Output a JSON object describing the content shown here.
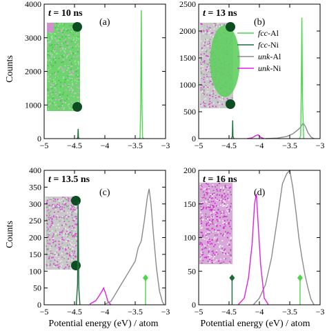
{
  "figure": {
    "xlabel": "Potential energy (eV) / atom",
    "ylabel": "Counts"
  },
  "legend": [
    {
      "species": "fcc",
      "suffix": "-Al",
      "color": "#4cd64c"
    },
    {
      "species": "fcc",
      "suffix": "-Ni",
      "color": "#1a6b3a"
    },
    {
      "species": "unk",
      "suffix": "-Al",
      "color": "#8a8a8a"
    },
    {
      "species": "unk",
      "suffix": "-Ni",
      "color": "#e020e0"
    }
  ],
  "colors": {
    "fcc_al": "#4cd64c",
    "fcc_ni": "#1a6b3a",
    "unk_al": "#8a8a8a",
    "unk_ni": "#e020e0"
  },
  "chart_data": [
    {
      "panel": "(a)",
      "type": "line",
      "t_label": "t = 10 ns",
      "t_var": "t",
      "t_value": "= 10 ns",
      "xlim": [
        -5,
        -3
      ],
      "ylim": [
        0,
        4000
      ],
      "xticks": [
        "−5",
        "−4.5",
        "−4",
        "−3.5",
        "−3"
      ],
      "yticks": [
        "0",
        "1000",
        "2000",
        "3000",
        "4000"
      ],
      "series": [
        {
          "key": "fcc_al",
          "x": [
            -3.44,
            -3.42,
            -3.41,
            -3.4,
            -3.39,
            -3.38,
            -3.36
          ],
          "y": [
            0,
            20,
            900,
            3820,
            1100,
            40,
            0
          ]
        },
        {
          "key": "fcc_ni",
          "x": [
            -4.46,
            -4.445,
            -4.44,
            -4.435,
            -4.42
          ],
          "y": [
            0,
            30,
            290,
            30,
            0
          ]
        }
      ]
    },
    {
      "panel": "(b)",
      "type": "line",
      "t_label": "t = 13 ns",
      "t_var": "t",
      "t_value": "= 13 ns",
      "xlim": [
        -5,
        -3
      ],
      "ylim": [
        0,
        2500
      ],
      "xticks": [
        "−5",
        "−4.5",
        "−4",
        "−3.5",
        "−3"
      ],
      "yticks": [
        "0",
        "500",
        "1000",
        "1500",
        "2000",
        "2500"
      ],
      "series": [
        {
          "key": "unk_al",
          "x": [
            -3.9,
            -3.7,
            -3.55,
            -3.45,
            -3.38,
            -3.33,
            -3.28,
            -3.24,
            -3.2,
            -3.15,
            -3.1
          ],
          "y": [
            0,
            10,
            40,
            90,
            150,
            200,
            290,
            220,
            110,
            30,
            0
          ]
        },
        {
          "key": "unk_ni",
          "x": [
            -4.2,
            -4.12,
            -4.06,
            -4.02,
            -3.98,
            -3.92
          ],
          "y": [
            0,
            15,
            55,
            70,
            25,
            0
          ]
        },
        {
          "key": "fcc_al",
          "x": [
            -3.34,
            -3.32,
            -3.31,
            -3.3,
            -3.29,
            -3.27
          ],
          "y": [
            0,
            50,
            900,
            2250,
            700,
            0
          ]
        },
        {
          "key": "fcc_ni",
          "x": [
            -4.46,
            -4.445,
            -4.44,
            -4.435,
            -4.42
          ],
          "y": [
            0,
            40,
            340,
            40,
            0
          ]
        }
      ]
    },
    {
      "panel": "(c)",
      "type": "line",
      "t_label": "t = 13.5 ns",
      "t_var": "t",
      "t_value": "= 13.5 ns",
      "xlim": [
        -5,
        -3
      ],
      "ylim": [
        0,
        400
      ],
      "xticks": [
        "−5",
        "−4.5",
        "−4",
        "−3.5",
        "−3"
      ],
      "yticks": [
        "0",
        "50",
        "100",
        "150",
        "200",
        "250",
        "300",
        "350",
        "400"
      ],
      "series": [
        {
          "key": "unk_al",
          "x": [
            -4.0,
            -3.9,
            -3.8,
            -3.7,
            -3.6,
            -3.5,
            -3.45,
            -3.4,
            -3.35,
            -3.3,
            -3.27,
            -3.24,
            -3.2,
            -3.15,
            -3.1,
            -3.05,
            -3.02
          ],
          "y": [
            2,
            10,
            40,
            70,
            100,
            130,
            170,
            190,
            250,
            320,
            345,
            300,
            210,
            110,
            40,
            8,
            0
          ]
        },
        {
          "key": "unk_ni",
          "x": [
            -4.25,
            -4.15,
            -4.1,
            -4.05,
            -4.02,
            -3.99,
            -3.95,
            -3.9
          ],
          "y": [
            2,
            12,
            25,
            40,
            50,
            35,
            10,
            0
          ]
        },
        {
          "key": "fcc_ni",
          "x": [
            -4.47,
            -4.45,
            -4.44,
            -4.43,
            -4.41
          ],
          "y": [
            0,
            60,
            305,
            50,
            0
          ]
        }
      ],
      "markers": [
        {
          "key": "fcc_al",
          "x": -3.33,
          "y": 80
        }
      ]
    },
    {
      "panel": "(d)",
      "type": "line",
      "t_label": "t = 16 ns",
      "t_var": "t",
      "t_value": "= 16 ns",
      "xlim": [
        -5,
        -3
      ],
      "ylim": [
        0,
        200
      ],
      "xticks": [
        "−5",
        "−4.5",
        "−4",
        "−3.5",
        "−3"
      ],
      "yticks": [
        "0",
        "50",
        "100",
        "150",
        "200"
      ],
      "series": [
        {
          "key": "unk_al",
          "x": [
            -4.1,
            -4.0,
            -3.9,
            -3.8,
            -3.7,
            -3.62,
            -3.55,
            -3.5,
            -3.45,
            -3.4,
            -3.35,
            -3.3,
            -3.25,
            -3.2,
            -3.15,
            -3.1
          ],
          "y": [
            0,
            10,
            30,
            70,
            130,
            180,
            195,
            200,
            175,
            140,
            100,
            70,
            45,
            25,
            8,
            0
          ]
        },
        {
          "key": "unk_ni",
          "x": [
            -4.35,
            -4.25,
            -4.18,
            -4.12,
            -4.08,
            -4.05,
            -4.02,
            -3.98,
            -3.92,
            -3.85
          ],
          "y": [
            0,
            10,
            40,
            90,
            150,
            165,
            120,
            60,
            10,
            0
          ]
        }
      ],
      "markers": [
        {
          "key": "fcc_ni",
          "x": -4.45,
          "y": 40
        },
        {
          "key": "fcc_al",
          "x": -3.33,
          "y": 40
        }
      ]
    }
  ]
}
